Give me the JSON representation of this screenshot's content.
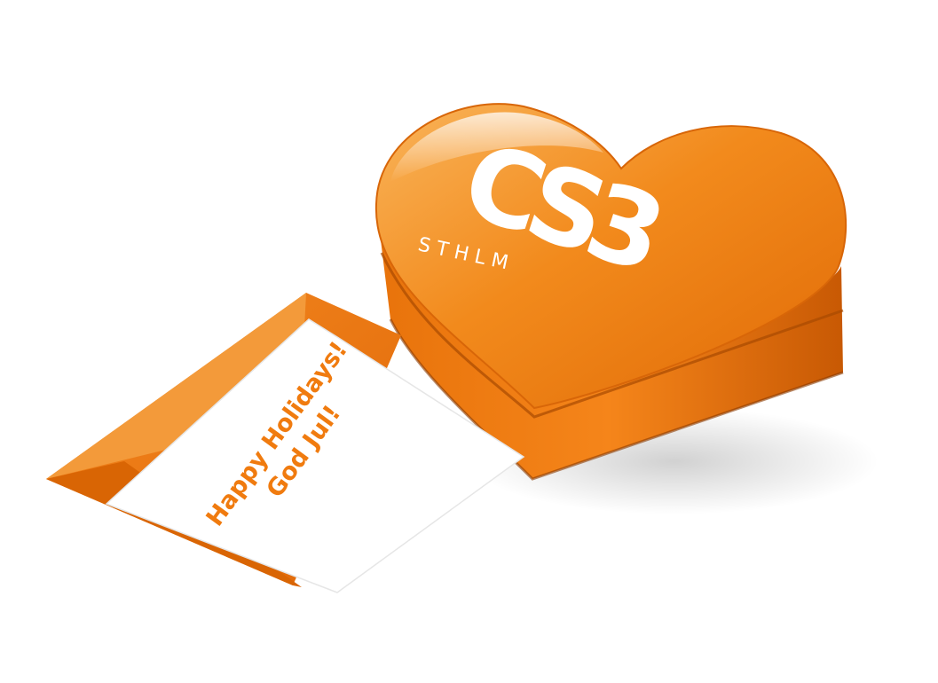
{
  "scene": {
    "logo": {
      "main": "CS3",
      "sub": "STHLM"
    },
    "card": {
      "line1": "Happy Holidays!",
      "line2": "God Jul!"
    },
    "colors": {
      "orange": "#f07b0f",
      "orange_dark": "#c95a05",
      "orange_light": "#f7a540",
      "card": "#ffffff"
    }
  }
}
